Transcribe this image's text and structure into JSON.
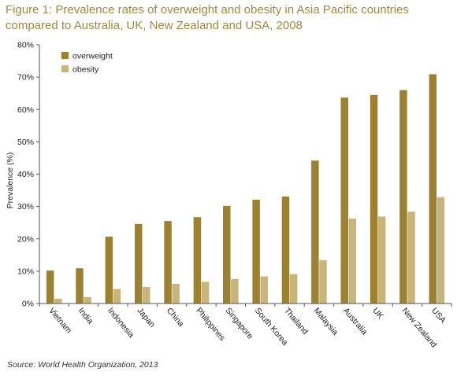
{
  "figure": {
    "title_line1": "Figure 1: Prevalence rates of overweight and obesity in Asia Pacific countries",
    "title_line2": "compared to Australia, UK, New Zealand and USA, 2008",
    "source": "Source: World Health Organization, 2013"
  },
  "colors": {
    "overweight": "#9c8230",
    "obesity": "#c9b47a",
    "title": "#a2883e",
    "axis": "#555555"
  },
  "chart_data": {
    "type": "bar",
    "categories": [
      "Vietnam",
      "India",
      "Indonesia",
      "Japan",
      "China",
      "Philippines",
      "Singapore",
      "South Korea",
      "Thailand",
      "Malaysia",
      "Australia",
      "UK",
      "New Zealand",
      "USA"
    ],
    "series": [
      {
        "name": "overweight",
        "values": [
          10.2,
          10.9,
          20.7,
          24.6,
          25.5,
          26.7,
          30.2,
          32.1,
          33.1,
          44.2,
          63.7,
          64.5,
          66.0,
          70.9
        ]
      },
      {
        "name": "obesity",
        "values": [
          1.5,
          2.0,
          4.5,
          5.1,
          6.1,
          6.7,
          7.6,
          8.4,
          9.1,
          13.4,
          26.3,
          26.9,
          28.4,
          32.9
        ]
      }
    ],
    "ylabel": "Prevalence (%)",
    "xlabel": "",
    "ylim": [
      0,
      80
    ],
    "yticks": [
      0,
      10,
      20,
      30,
      40,
      50,
      60,
      70,
      80
    ],
    "ytick_labels": [
      "0%",
      "10%",
      "20%",
      "30%",
      "40%",
      "50%",
      "60%",
      "70%",
      "80%"
    ],
    "grid": false,
    "legend_position": "top-left"
  }
}
